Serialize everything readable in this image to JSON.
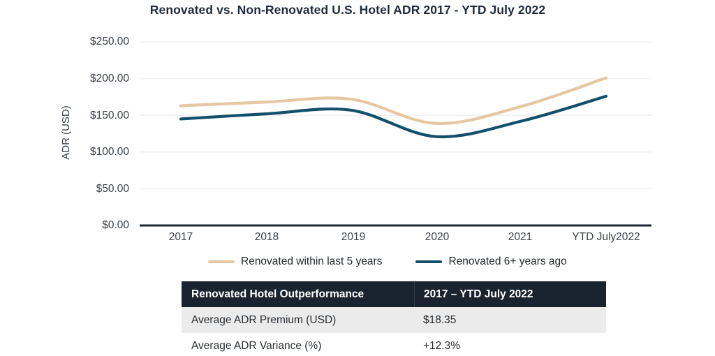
{
  "chart_data": {
    "type": "line",
    "title": "Renovated vs. Non-Renovated U.S. Hotel ADR 2017 - YTD July 2022",
    "ylabel": "ADR (USD)",
    "xlabel": "",
    "categories": [
      "2017",
      "2018",
      "2019",
      "2020",
      "2021",
      "YTD July2022"
    ],
    "series": [
      {
        "name": "Renovated within last 5 years",
        "color": "#e6c7a3",
        "values": [
          163,
          168,
          172,
          139,
          162,
          201
        ]
      },
      {
        "name": "Renovated 6+ years ago",
        "color": "#14506b",
        "values": [
          145,
          152,
          157,
          121,
          142,
          176
        ]
      }
    ],
    "ylim": [
      0,
      250
    ],
    "yticks": {
      "values": [
        250,
        200,
        150,
        100,
        50,
        0
      ],
      "labels": [
        "$250.00",
        "$200.00",
        "$150.00",
        "$100.00",
        "$50.00",
        "$0.00"
      ]
    },
    "grid": true,
    "grid_color": "#f1f1f1",
    "axis_color": "#1c2733",
    "legend_position": "bottom"
  },
  "legend": {
    "items": [
      {
        "label": "Renovated within last 5 years",
        "color": "#e6c7a3"
      },
      {
        "label": "Renovated 6+ years ago",
        "color": "#14506b"
      }
    ]
  },
  "table": {
    "headers": {
      "metric": "Renovated Hotel Outperformance",
      "period": "2017 – YTD July 2022"
    },
    "rows": [
      {
        "label": "Average ADR Premium (USD)",
        "value": "$18.35"
      },
      {
        "label": "Average ADR Variance (%)",
        "value": "+12.3%"
      }
    ],
    "header_bg": "#1a2430",
    "row_alt_bg": "#ebebeb"
  }
}
